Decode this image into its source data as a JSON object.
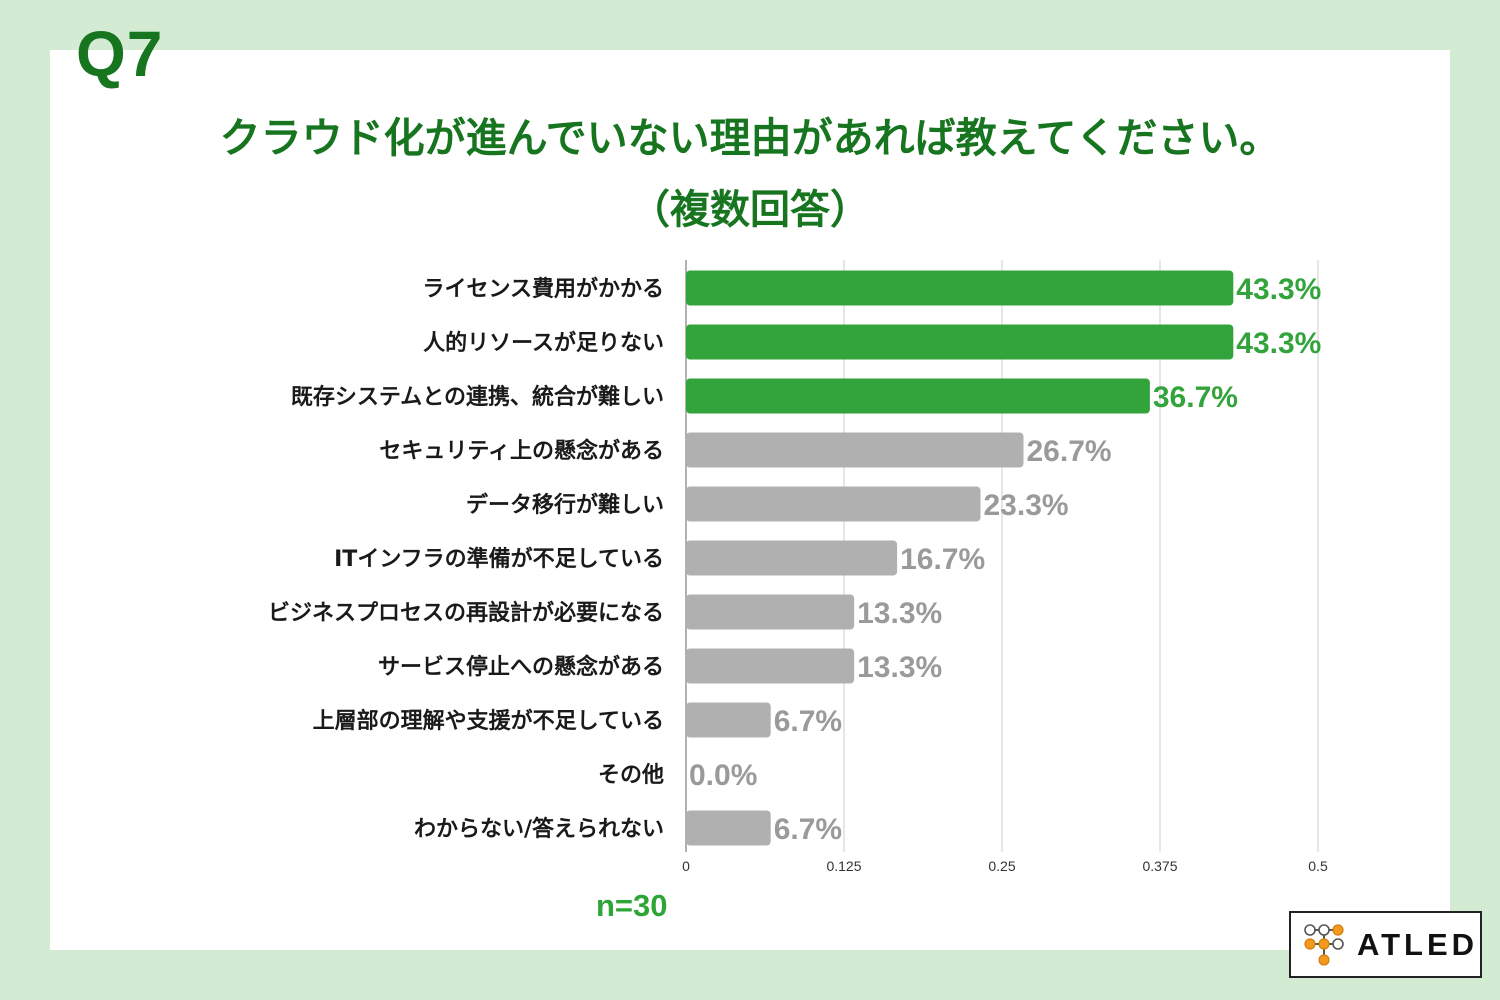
{
  "question_number": "Q7",
  "title_line1": "クラウド化が進んでいない理由があれば教えてください。",
  "title_line2": "（複数回答）",
  "sample_size": "n=30",
  "logo_text": "ATLED",
  "colors": {
    "background": "#d3ebd3",
    "title": "#17741f",
    "highlight_bar": "#33a43b",
    "normal_bar": "#b0b0b0",
    "gridline": "#cccccc",
    "logo_orange": "#f39a1e"
  },
  "chart_data": {
    "type": "bar",
    "orientation": "horizontal",
    "categories": [
      "ライセンス費用がかかる",
      "人的リソースが足りない",
      "既存システムとの連携、統合が難しい",
      "セキュリティ上の懸念がある",
      "データ移行が難しい",
      "ITインフラの準備が不足している",
      "ビジネスプロセスの再設計が必要になる",
      "サービス停止への懸念がある",
      "上層部の理解や支援が不足している",
      "その他",
      "わからない/答えられない"
    ],
    "values": [
      0.433,
      0.433,
      0.367,
      0.267,
      0.233,
      0.167,
      0.133,
      0.133,
      0.067,
      0.0,
      0.067
    ],
    "value_labels": [
      "43.3%",
      "43.3%",
      "36.7%",
      "26.7%",
      "23.3%",
      "16.7%",
      "13.3%",
      "13.3%",
      "6.7%",
      "0.0%",
      "6.7%"
    ],
    "highlighted": [
      true,
      true,
      true,
      false,
      false,
      false,
      false,
      false,
      false,
      false,
      false
    ],
    "xlim": [
      0,
      0.5
    ],
    "xticks": [
      0,
      0.125,
      0.25,
      0.375,
      0.5
    ],
    "xtick_labels": [
      "0",
      "0.125",
      "0.25",
      "0.375",
      "0.5"
    ],
    "grid": true,
    "legend": "none"
  }
}
